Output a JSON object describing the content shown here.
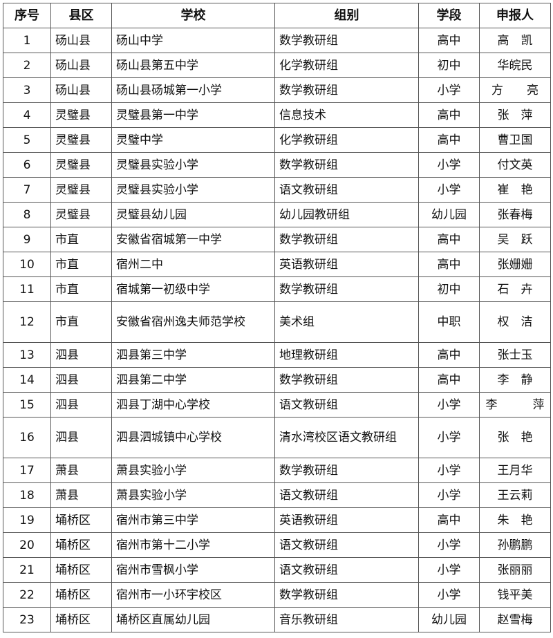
{
  "headers": [
    "序号",
    "县区",
    "学校",
    "组别",
    "学段",
    "申报人"
  ],
  "rows": [
    [
      "1",
      "砀山县",
      "砀山中学",
      "数学教研组",
      "高中",
      "高　凯"
    ],
    [
      "2",
      "砀山县",
      "砀山县第五中学",
      "化学教研组",
      "初中",
      "华皖民"
    ],
    [
      "3",
      "砀山县",
      "砀山县砀城第一小学",
      "数学教研组",
      "小学",
      "方　　亮"
    ],
    [
      "4",
      "灵璧县",
      "灵璧县第一中学",
      "信息技术",
      "高中",
      "张　萍"
    ],
    [
      "5",
      "灵璧县",
      "灵璧中学",
      "化学教研组",
      "高中",
      "曹卫国"
    ],
    [
      "6",
      "灵璧县",
      "灵璧县实验小学",
      "数学教研组",
      "小学",
      "付文英"
    ],
    [
      "7",
      "灵璧县",
      "灵璧县实验小学",
      "语文教研组",
      "小学",
      "崔　艳"
    ],
    [
      "8",
      "灵璧县",
      "灵璧县幼儿园",
      "幼儿园教研组",
      "幼儿园",
      "张春梅"
    ],
    [
      "9",
      "市直",
      "安徽省宿城第一中学",
      "数学教研组",
      "高中",
      "吴　跃"
    ],
    [
      "10",
      "市直",
      "宿州二中",
      "英语教研组",
      "高中",
      "张姗姗"
    ],
    [
      "11",
      "市直",
      "宿城第一初级中学",
      "数学教研组",
      "初中",
      "石　卉"
    ],
    [
      "12",
      "市直",
      "安徽省宿州逸夫师范学校",
      "美术组",
      "中职",
      "权　洁"
    ],
    [
      "13",
      "泗县",
      "泗县第三中学",
      "地理教研组",
      "高中",
      "张士玉"
    ],
    [
      "14",
      "泗县",
      "泗县第二中学",
      "数学教研组",
      "高中",
      "李　静"
    ],
    [
      "15",
      "泗县",
      "泗县丁湖中心学校",
      "语文教研组",
      "小学",
      "李　　　萍"
    ],
    [
      "16",
      "泗县",
      "泗县泗城镇中心学校",
      "清水湾校区语文教研组",
      "小学",
      "张　艳"
    ],
    [
      "17",
      "萧县",
      "萧县实验小学",
      "数学教研组",
      "小学",
      "王月华"
    ],
    [
      "18",
      "萧县",
      "萧县实验小学",
      "语文教研组",
      "小学",
      "王云莉"
    ],
    [
      "19",
      "埇桥区",
      "宿州市第三中学",
      "英语教研组",
      "高中",
      "朱　艳"
    ],
    [
      "20",
      "埇桥区",
      "宿州市第十二小学",
      "语文教研组",
      "小学",
      "孙鹏鹏"
    ],
    [
      "21",
      "埇桥区",
      "宿州市雪枫小学",
      "语文教研组",
      "小学",
      "张丽丽"
    ],
    [
      "22",
      "埇桥区",
      "宿州市一小环宇校区",
      "数学教研组",
      "小学",
      "钱平美"
    ],
    [
      "23",
      "埇桥区",
      "埇桥区直属幼儿园",
      "音乐教研组",
      "幼儿园",
      "赵雪梅"
    ]
  ]
}
